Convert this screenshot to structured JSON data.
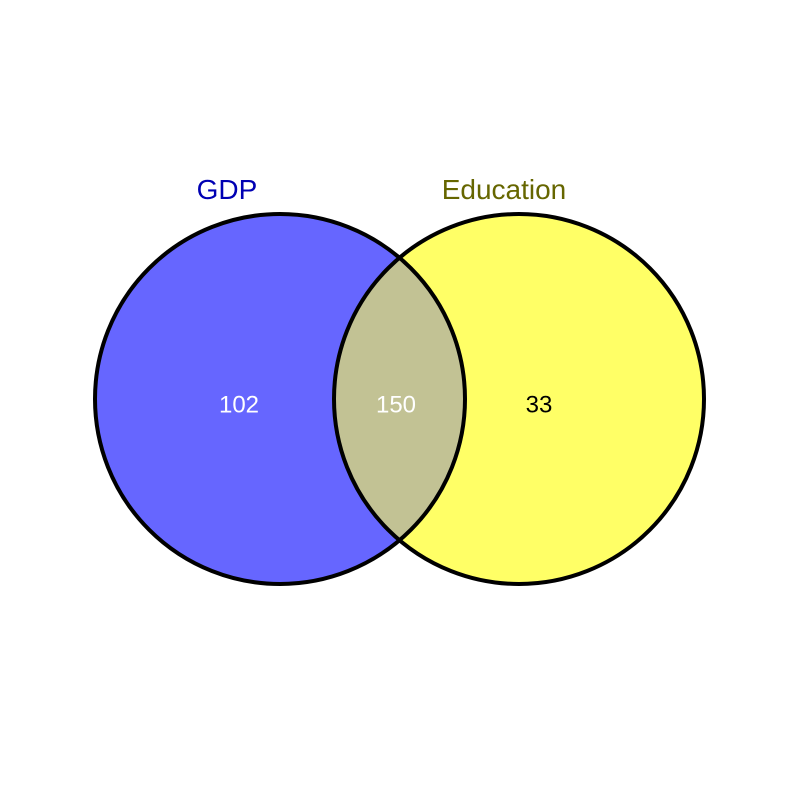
{
  "diagram": {
    "type": "venn",
    "sets": [
      {
        "name": "GDP",
        "only_count": "102",
        "fill": "#6666ff",
        "label_color": "#0000b3"
      },
      {
        "name": "Education",
        "only_count": "33",
        "fill": "#ffff66",
        "label_color": "#666600"
      }
    ],
    "intersection": {
      "count": "150",
      "fill": "#c2c294"
    },
    "count_colors": {
      "left": "#ffffff",
      "middle": "#ffffff",
      "right": "#000000"
    },
    "outline_color": "#000000"
  }
}
